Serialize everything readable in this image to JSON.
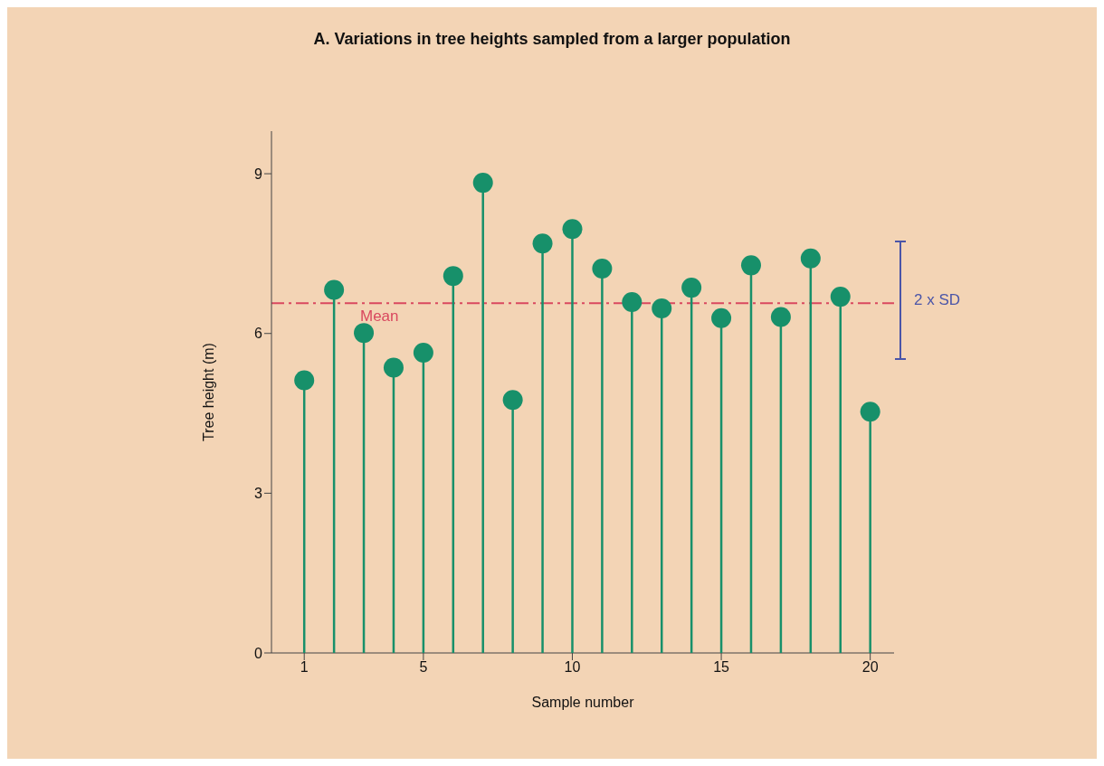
{
  "chart_data": {
    "type": "lollipop",
    "title": "A. Variations in tree heights sampled from a larger population",
    "xlabel": "Sample number",
    "ylabel": "Tree height (m)",
    "x": [
      1,
      2,
      3,
      4,
      5,
      6,
      7,
      8,
      9,
      10,
      11,
      12,
      13,
      14,
      15,
      16,
      17,
      18,
      19,
      20
    ],
    "values": [
      5.12,
      6.82,
      6.01,
      5.36,
      5.64,
      7.08,
      8.83,
      4.75,
      7.69,
      7.96,
      7.22,
      6.59,
      6.47,
      6.86,
      6.29,
      7.28,
      6.31,
      7.41,
      6.69,
      4.53
    ],
    "color": "#17906a",
    "marker": "circle",
    "xlim": [
      -0.1,
      20.8
    ],
    "xticks": [
      1,
      5,
      10,
      15,
      20
    ],
    "ylim": [
      0,
      9.8
    ],
    "yticks": [
      0,
      3,
      6,
      9
    ],
    "ref_lines": [
      {
        "axis": "y",
        "value": 6.57,
        "label": "Mean",
        "color": "#d9485f",
        "line_style": "dashed"
      }
    ],
    "annotations": [
      "2 x SD"
    ]
  }
}
